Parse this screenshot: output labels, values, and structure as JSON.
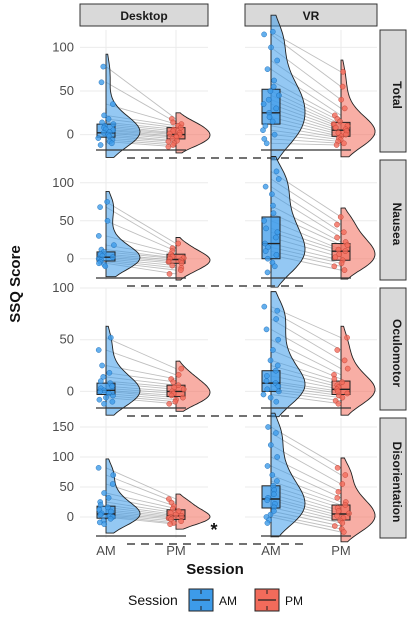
{
  "chart_data": {
    "type": "raincloud",
    "xlabel": "Session",
    "ylabel": "SSQ Score",
    "categories": [
      "AM",
      "PM"
    ],
    "facet_columns": [
      "Desktop",
      "VR"
    ],
    "legend": {
      "title": "Session",
      "position": "bottom",
      "items": [
        {
          "label": "AM",
          "color": "#3d9be9"
        },
        {
          "label": "PM",
          "color": "#f26b5b"
        }
      ]
    },
    "grid": true,
    "significance": [
      {
        "row": "Disorientation",
        "compare": "Desktop PM vs VR AM",
        "label": "*"
      }
    ],
    "panels": [
      {
        "row": "Total",
        "ylim": [
          -20,
          120
        ],
        "yticks": [
          0,
          50,
          100
        ],
        "tick_labels": [
          "0",
          "50",
          "100"
        ],
        "Desktop": {
          "AM": {
            "q1": -3,
            "median": 2,
            "q3": 12,
            "whisker_low": -12,
            "whisker_high": 30,
            "points": [
              78,
              60,
              35,
              22,
              18,
              14,
              12,
              10,
              8,
              6,
              5,
              3,
              2,
              0,
              -2,
              -4,
              -6,
              -8,
              -10,
              -12
            ]
          },
          "PM": {
            "q1": -5,
            "median": 0,
            "q3": 8,
            "whisker_low": -12,
            "whisker_high": 18,
            "points": [
              18,
              14,
              12,
              10,
              8,
              6,
              4,
              2,
              1,
              0,
              -2,
              -3,
              -5,
              -7,
              -8,
              -10,
              -12,
              -14
            ]
          }
        },
        "VR": {
          "AM": {
            "q1": 12,
            "median": 25,
            "q3": 52,
            "whisker_low": -10,
            "whisker_high": 118,
            "points": [
              118,
              115,
              100,
              85,
              75,
              62,
              55,
              50,
              45,
              40,
              35,
              30,
              25,
              20,
              15,
              10,
              5,
              0,
              -5,
              -10
            ]
          },
          "PM": {
            "q1": -2,
            "median": 5,
            "q3": 14,
            "whisker_low": -12,
            "whisker_high": 72,
            "points": [
              72,
              55,
              40,
              30,
              22,
              18,
              15,
              12,
              10,
              8,
              6,
              4,
              2,
              0,
              -2,
              -4,
              -6,
              -8,
              -10,
              -12
            ]
          }
        }
      },
      {
        "row": "Nausea",
        "ylim": [
          -28,
          130
        ],
        "yticks": [
          0,
          50,
          100
        ],
        "tick_labels": [
          "0",
          "50",
          "100"
        ],
        "Desktop": {
          "AM": {
            "q1": -3,
            "median": 2,
            "q3": 9,
            "whisker_low": -10,
            "whisker_high": 20,
            "points": [
              75,
              68,
              50,
              30,
              18,
              12,
              9,
              6,
              4,
              2,
              0,
              -2,
              -4,
              -6,
              -8,
              -10
            ]
          },
          "PM": {
            "q1": -6,
            "median": -1,
            "q3": 6,
            "whisker_low": -20,
            "whisker_high": 20,
            "points": [
              20,
              14,
              10,
              6,
              3,
              1,
              0,
              -2,
              -4,
              -6,
              -9,
              -12,
              -15,
              -20
            ]
          }
        },
        "VR": {
          "AM": {
            "q1": 0,
            "median": 20,
            "q3": 55,
            "whisker_low": -18,
            "whisker_high": 115,
            "points": [
              115,
              105,
              95,
              85,
              70,
              60,
              50,
              40,
              35,
              28,
              20,
              15,
              10,
              5,
              0,
              -5,
              -10,
              -18
            ]
          },
          "PM": {
            "q1": -2,
            "median": 10,
            "q3": 20,
            "whisker_low": -15,
            "whisker_high": 55,
            "points": [
              55,
              45,
              35,
              28,
              22,
              18,
              12,
              10,
              6,
              2,
              -2,
              -6,
              -10,
              -15
            ]
          }
        }
      },
      {
        "row": "Oculomotor",
        "ylim": [
          -18,
          100
        ],
        "yticks": [
          0,
          50,
          100
        ],
        "tick_labels": [
          "0",
          "50",
          "100"
        ],
        "Desktop": {
          "AM": {
            "q1": -3,
            "median": 1,
            "q3": 8,
            "whisker_low": -12,
            "whisker_high": 25,
            "points": [
              52,
              40,
              25,
              18,
              14,
              10,
              8,
              5,
              3,
              1,
              0,
              -2,
              -4,
              -6,
              -8,
              -10,
              -12
            ]
          },
          "PM": {
            "q1": -5,
            "median": 0,
            "q3": 6,
            "whisker_low": -12,
            "whisker_high": 22,
            "points": [
              22,
              16,
              12,
              9,
              6,
              4,
              2,
              0,
              -2,
              -4,
              -6,
              -8,
              -10,
              -12
            ]
          }
        },
        "VR": {
          "AM": {
            "q1": 0,
            "median": 8,
            "q3": 20,
            "whisker_low": -10,
            "whisker_high": 80,
            "points": [
              82,
              78,
              70,
              60,
              50,
              40,
              30,
              25,
              20,
              15,
              10,
              8,
              5,
              2,
              0,
              -3,
              -6,
              -10
            ]
          },
          "PM": {
            "q1": -3,
            "median": 2,
            "q3": 10,
            "whisker_low": -12,
            "whisker_high": 52,
            "points": [
              52,
              40,
              30,
              22,
              16,
              12,
              9,
              6,
              4,
              2,
              0,
              -2,
              -4,
              -6,
              -9,
              -12
            ]
          }
        }
      },
      {
        "row": "Disorientation",
        "ylim": [
          -35,
          165
        ],
        "yticks": [
          0,
          50,
          100,
          150
        ],
        "tick_labels": [
          "0",
          "50",
          "100",
          "150"
        ],
        "Desktop": {
          "AM": {
            "q1": -2,
            "median": 5,
            "q3": 18,
            "whisker_low": -12,
            "whisker_high": 40,
            "points": [
              82,
              70,
              55,
              40,
              32,
              25,
              20,
              16,
              12,
              9,
              6,
              4,
              2,
              0,
              -3,
              -6,
              -9,
              -12
            ]
          },
          "PM": {
            "q1": -4,
            "median": 2,
            "q3": 12,
            "whisker_low": -12,
            "whisker_high": 30,
            "points": [
              30,
              24,
              18,
              14,
              10,
              7,
              4,
              2,
              0,
              -2,
              -4,
              -7,
              -10,
              -12
            ]
          }
        },
        "VR": {
          "AM": {
            "q1": 15,
            "median": 30,
            "q3": 52,
            "whisker_low": -10,
            "whisker_high": 150,
            "points": [
              150,
              140,
              120,
              100,
              85,
              70,
              60,
              52,
              45,
              38,
              32,
              28,
              22,
              16,
              10,
              4,
              0,
              -5,
              -10
            ]
          },
          "PM": {
            "q1": -5,
            "median": 5,
            "q3": 20,
            "whisker_low": -25,
            "whisker_high": 80,
            "points": [
              82,
              70,
              55,
              42,
              32,
              25,
              20,
              15,
              10,
              6,
              2,
              -2,
              -6,
              -10,
              -15,
              -20,
              -25
            ]
          }
        }
      }
    ]
  }
}
